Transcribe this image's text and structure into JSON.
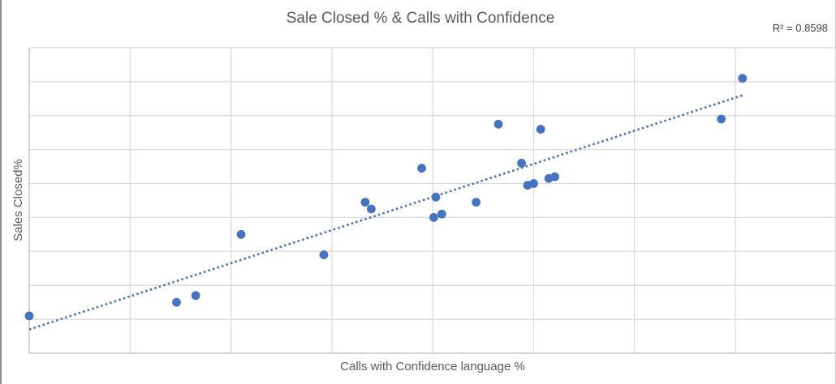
{
  "chart_data": {
    "type": "scatter",
    "title": "Sale Closed % & Calls with Confidence",
    "xlabel": "Calls with Confidence language %",
    "ylabel": "Sales Closed%",
    "grid": true,
    "tick_labels_shown": false,
    "xlim": [
      0,
      8
    ],
    "ylim": [
      0,
      9
    ],
    "series": [
      {
        "color": "#4472c4",
        "points": [
          {
            "x": 0.0,
            "y": 1.1
          },
          {
            "x": 1.46,
            "y": 1.5
          },
          {
            "x": 1.65,
            "y": 1.7
          },
          {
            "x": 2.1,
            "y": 3.5
          },
          {
            "x": 2.92,
            "y": 2.9
          },
          {
            "x": 3.33,
            "y": 4.45
          },
          {
            "x": 3.39,
            "y": 4.25
          },
          {
            "x": 3.89,
            "y": 5.45
          },
          {
            "x": 4.01,
            "y": 4.0
          },
          {
            "x": 4.03,
            "y": 4.6
          },
          {
            "x": 4.09,
            "y": 4.1
          },
          {
            "x": 4.43,
            "y": 4.45
          },
          {
            "x": 4.65,
            "y": 6.75
          },
          {
            "x": 4.88,
            "y": 5.6
          },
          {
            "x": 4.94,
            "y": 4.95
          },
          {
            "x": 5.0,
            "y": 5.0
          },
          {
            "x": 5.07,
            "y": 6.6
          },
          {
            "x": 5.15,
            "y": 5.15
          },
          {
            "x": 5.21,
            "y": 5.2
          },
          {
            "x": 6.86,
            "y": 6.9
          },
          {
            "x": 7.07,
            "y": 8.1
          }
        ]
      }
    ],
    "trendline": {
      "type": "linear",
      "style": "dotted",
      "x_range": [
        0,
        7.07
      ],
      "y_start": 0.7,
      "y_end": 7.6
    },
    "annotations": [
      {
        "text": "R² = 0.8598"
      }
    ]
  },
  "colors": {
    "series": "#4472c4",
    "grid": "#d9d9d9",
    "text": "#595959"
  }
}
